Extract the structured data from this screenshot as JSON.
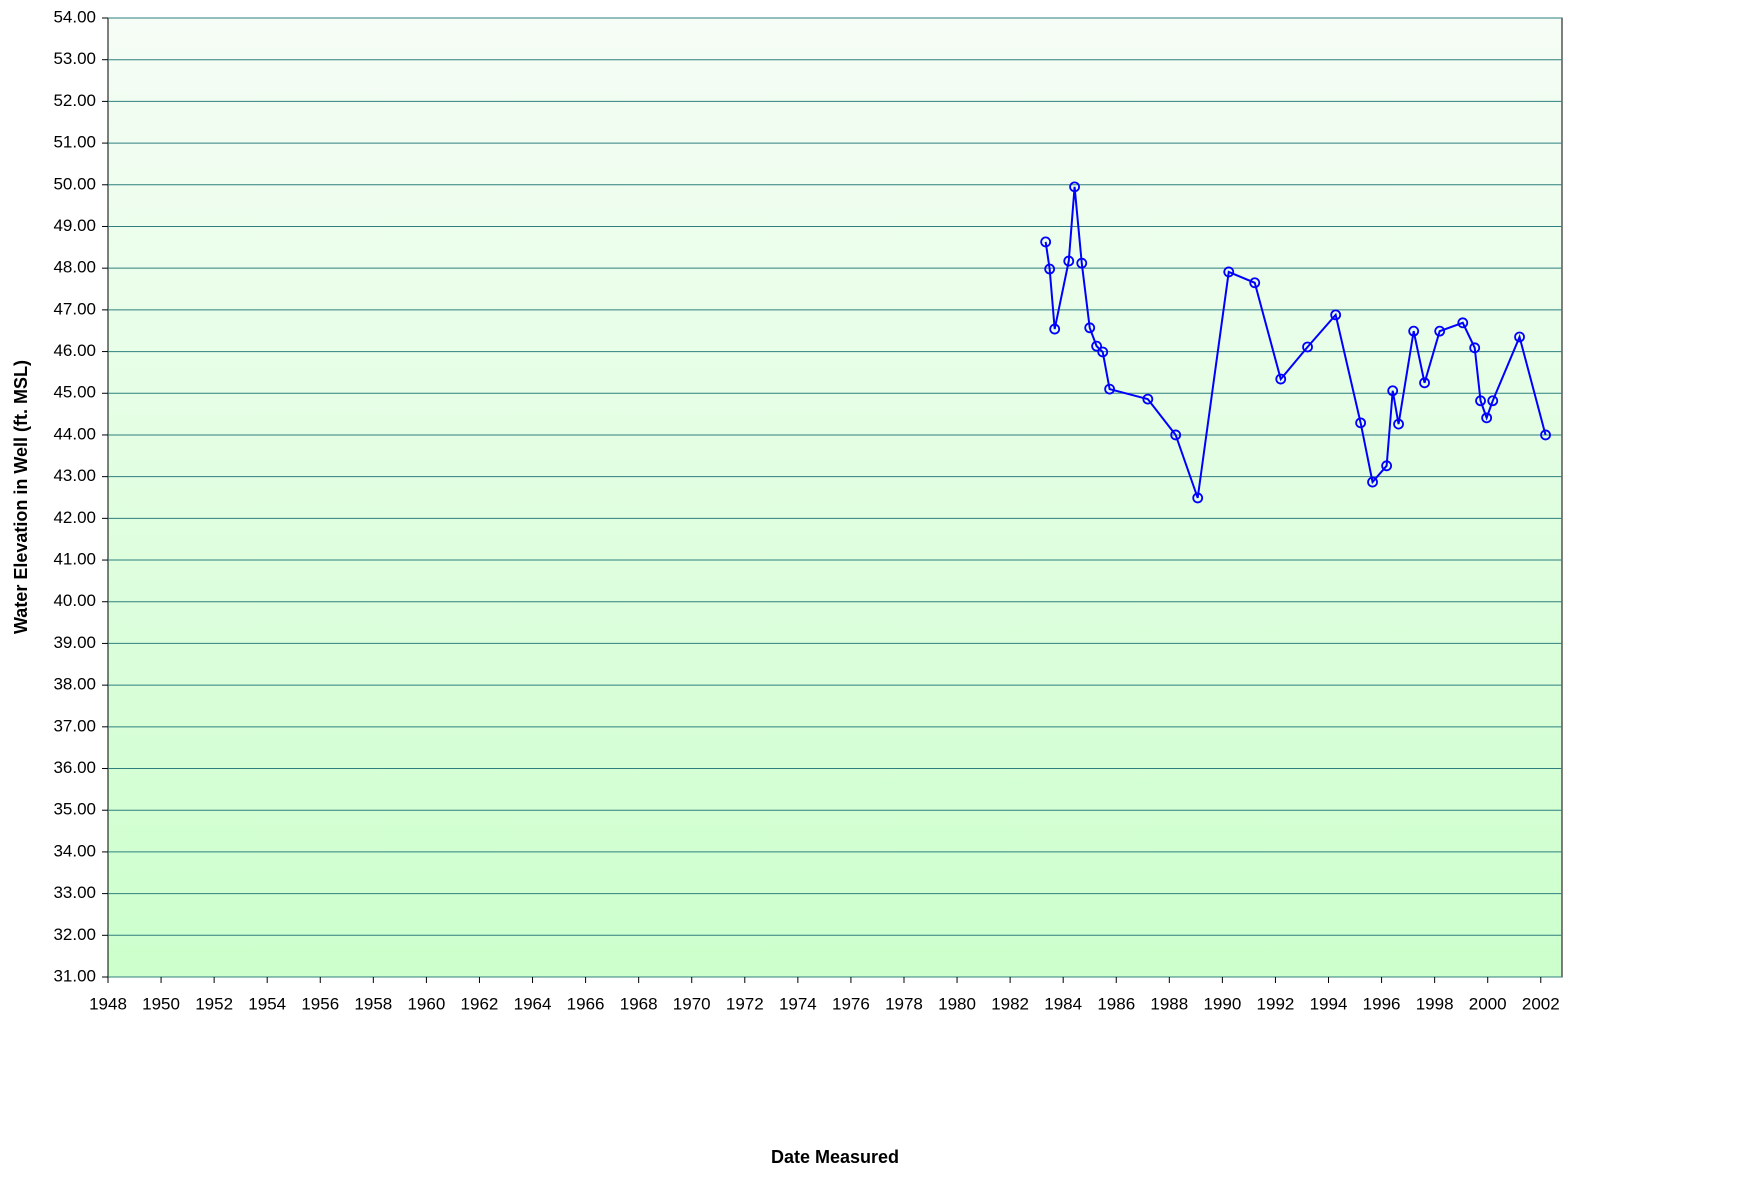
{
  "chart_data": {
    "type": "line",
    "xlabel": "Date Measured",
    "ylabel": "Water Elevation in Well (ft. MSL)",
    "series": [
      {
        "name": "Water Elevation",
        "color": "#0000ff",
        "x": [
          1983.34,
          1983.49,
          1983.68,
          1984.21,
          1984.43,
          1984.7,
          1985.0,
          1985.26,
          1985.49,
          1985.75,
          1987.19,
          1988.24,
          1989.07,
          1990.24,
          1991.22,
          1992.2,
          1993.21,
          1994.27,
          1995.21,
          1995.66,
          1996.19,
          1996.42,
          1996.64,
          1997.21,
          1997.62,
          1998.19,
          1999.06,
          1999.51,
          1999.73,
          1999.96,
          2000.19,
          2001.2,
          2002.18
        ],
        "values": [
          48.63,
          47.98,
          46.54,
          48.17,
          49.95,
          48.12,
          46.57,
          46.13,
          45.99,
          45.1,
          44.86,
          44.0,
          42.49,
          47.91,
          47.65,
          45.34,
          46.11,
          46.88,
          44.29,
          42.87,
          43.26,
          45.06,
          44.26,
          46.49,
          45.25,
          46.49,
          46.69,
          46.09,
          44.82,
          44.41,
          44.82,
          46.35,
          44.0
        ]
      }
    ],
    "xlim": [
      1948,
      2002.8
    ],
    "xticks": [
      1948,
      1950,
      1952,
      1954,
      1956,
      1958,
      1960,
      1962,
      1964,
      1966,
      1968,
      1970,
      1972,
      1974,
      1976,
      1978,
      1980,
      1982,
      1984,
      1986,
      1988,
      1990,
      1992,
      1994,
      1996,
      1998,
      2000,
      2002
    ],
    "ylim": [
      31,
      54
    ],
    "yticks": [
      {
        "value": 31,
        "label": "31.00"
      },
      {
        "value": 32,
        "label": "32.00"
      },
      {
        "value": 33,
        "label": "33.00"
      },
      {
        "value": 34,
        "label": "34.00"
      },
      {
        "value": 35,
        "label": "35.00"
      },
      {
        "value": 36,
        "label": "36.00"
      },
      {
        "value": 37,
        "label": "37.00"
      },
      {
        "value": 38,
        "label": "38.00"
      },
      {
        "value": 39,
        "label": "39.00"
      },
      {
        "value": 40,
        "label": "40.00"
      },
      {
        "value": 41,
        "label": "41.00"
      },
      {
        "value": 42,
        "label": "42.00"
      },
      {
        "value": 43,
        "label": "43.00"
      },
      {
        "value": 44,
        "label": "44.00"
      },
      {
        "value": 45,
        "label": "45.00"
      },
      {
        "value": 46,
        "label": "46.00"
      },
      {
        "value": 47,
        "label": "47.00"
      },
      {
        "value": 48,
        "label": "48.00"
      },
      {
        "value": 49,
        "label": "49.00"
      },
      {
        "value": 50,
        "label": "50.00"
      },
      {
        "value": 51,
        "label": "51.00"
      },
      {
        "value": 52,
        "label": "52.00"
      },
      {
        "value": 53,
        "label": "53.00"
      },
      {
        "value": 54,
        "label": "54.00"
      }
    ],
    "grid": true
  }
}
